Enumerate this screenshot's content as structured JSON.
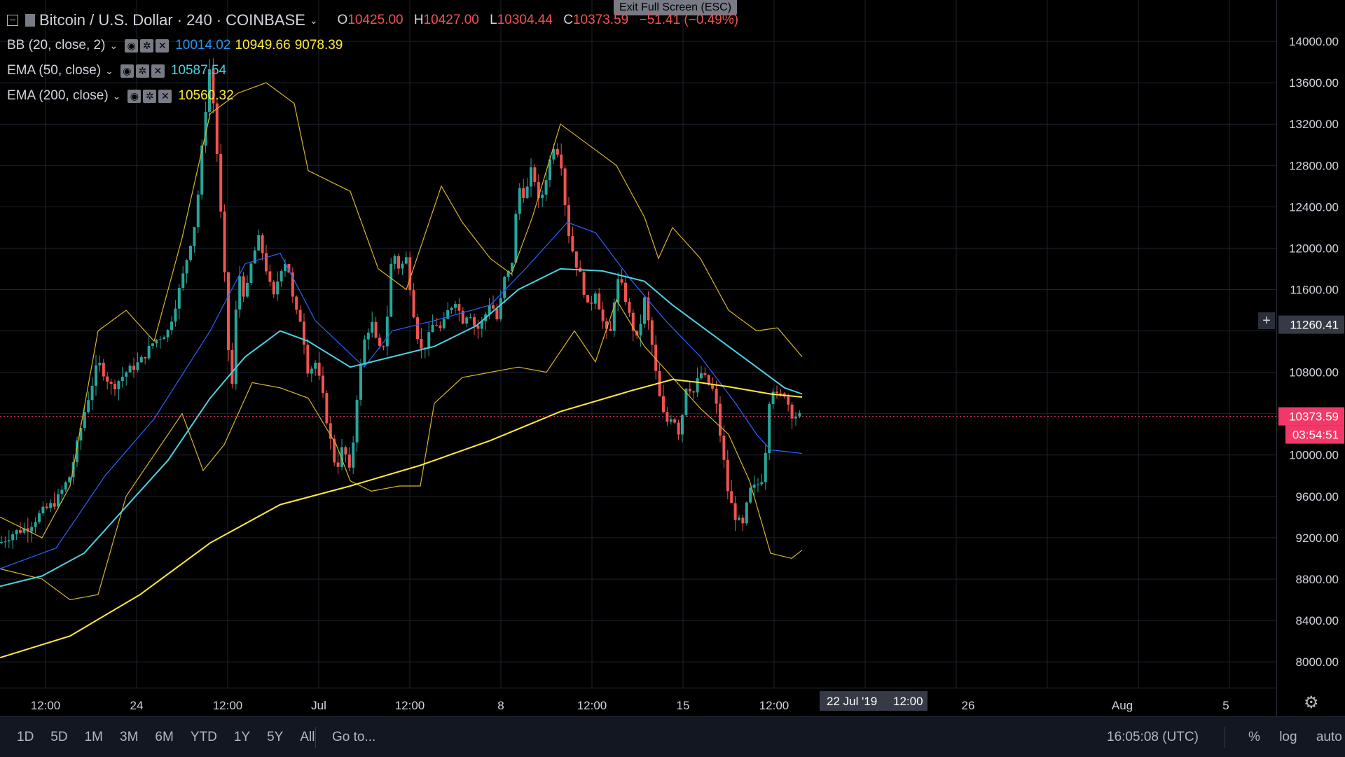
{
  "toolbar_hint": "Exit Full Screen (ESC)",
  "symbol": {
    "title": "Bitcoin / U.S. Dollar",
    "interval": "240",
    "exchange": "COINBASE",
    "ohlc": {
      "o_label": "O",
      "o": "10425.00",
      "h_label": "H",
      "h": "10427.00",
      "l_label": "L",
      "l": "10304.44",
      "c_label": "C",
      "c": "10373.59",
      "change": "−51.41 (−0.49%)"
    }
  },
  "indicators": [
    {
      "name": "BB (20, close, 2)",
      "values": [
        "10014.02",
        "10949.66",
        "9078.39"
      ],
      "colors": [
        "#2196f3",
        "#ffeb3b",
        "#ffeb3b"
      ]
    },
    {
      "name": "EMA (50, close)",
      "values": [
        "10587.54"
      ],
      "colors": [
        "#4dd0e1"
      ]
    },
    {
      "name": "EMA (200, close)",
      "values": [
        "10560.32"
      ],
      "colors": [
        "#ffeb3b"
      ]
    }
  ],
  "price_axis": {
    "ticks": [
      "14000.00",
      "13600.00",
      "13200.00",
      "12800.00",
      "12400.00",
      "12000.00",
      "11600.00",
      "10800.00",
      "10000.00",
      "9600.00",
      "9200.00",
      "8800.00",
      "8400.00",
      "8000.00"
    ],
    "crosshair_price": "11260.41",
    "last_price": "10373.59",
    "countdown": "03:54:51"
  },
  "time_axis": {
    "ticks": [
      "12:00",
      "24",
      "12:00",
      "Jul",
      "12:00",
      "8",
      "12:00",
      "15",
      "12:00",
      "26",
      "Aug",
      "5"
    ],
    "crosshair_date": "22 Jul '19",
    "crosshair_time": "12:00"
  },
  "bottom_bar": {
    "ranges": [
      "1D",
      "5D",
      "1M",
      "3M",
      "6M",
      "YTD",
      "1Y",
      "5Y",
      "All"
    ],
    "goto": "Go to...",
    "clock": "16:05:08 (UTC)",
    "percent": "%",
    "log": "log",
    "auto": "auto"
  },
  "icons": [
    "collapse-icon",
    "settings-icon",
    "eye-icon",
    "close-icon",
    "gear-icon",
    "crosshair-plus-icon"
  ],
  "colors": {
    "up": "#26a69a",
    "down": "#ef5350",
    "bb_band": "#d6b62a",
    "bb_basis": "#2962ff",
    "ema50": "#4dd0e1",
    "ema200": "#ffeb3b",
    "last_price_bg": "#f23869"
  },
  "chart_data": {
    "type": "candlestick",
    "ylim": [
      7750,
      14400
    ],
    "x_range": [
      0,
      1820
    ],
    "series": [
      {
        "name": "BB (20, close, 2)",
        "type": "line"
      },
      {
        "name": "EMA (50, close)",
        "type": "line"
      },
      {
        "name": "EMA (200, close)",
        "type": "line"
      }
    ],
    "ema200": [
      [
        0,
        8040
      ],
      [
        100,
        8250
      ],
      [
        200,
        8650
      ],
      [
        300,
        9150
      ],
      [
        400,
        9520
      ],
      [
        500,
        9700
      ],
      [
        600,
        9900
      ],
      [
        700,
        10140
      ],
      [
        800,
        10420
      ],
      [
        900,
        10620
      ],
      [
        960,
        10730
      ],
      [
        1000,
        10700
      ],
      [
        1040,
        10660
      ],
      [
        1100,
        10590
      ],
      [
        1145,
        10560
      ]
    ],
    "ema50": [
      [
        0,
        8730
      ],
      [
        60,
        8830
      ],
      [
        120,
        9050
      ],
      [
        180,
        9500
      ],
      [
        240,
        9950
      ],
      [
        300,
        10550
      ],
      [
        350,
        10950
      ],
      [
        400,
        11200
      ],
      [
        440,
        11100
      ],
      [
        500,
        10850
      ],
      [
        560,
        10950
      ],
      [
        620,
        11050
      ],
      [
        680,
        11250
      ],
      [
        740,
        11600
      ],
      [
        800,
        11800
      ],
      [
        860,
        11780
      ],
      [
        920,
        11680
      ],
      [
        960,
        11450
      ],
      [
        1000,
        11250
      ],
      [
        1040,
        11050
      ],
      [
        1080,
        10850
      ],
      [
        1120,
        10650
      ],
      [
        1145,
        10590
      ]
    ],
    "bb_basis": [
      [
        0,
        8900
      ],
      [
        80,
        9100
      ],
      [
        150,
        9800
      ],
      [
        220,
        10350
      ],
      [
        300,
        11200
      ],
      [
        350,
        11850
      ],
      [
        400,
        11950
      ],
      [
        450,
        11300
      ],
      [
        520,
        10850
      ],
      [
        560,
        11200
      ],
      [
        620,
        11300
      ],
      [
        700,
        11450
      ],
      [
        750,
        11800
      ],
      [
        810,
        12250
      ],
      [
        850,
        12150
      ],
      [
        900,
        11700
      ],
      [
        950,
        11300
      ],
      [
        1000,
        10950
      ],
      [
        1050,
        10500
      ],
      [
        1080,
        10200
      ],
      [
        1100,
        10050
      ],
      [
        1145,
        10015
      ]
    ],
    "bb_upper": [
      [
        0,
        9400
      ],
      [
        60,
        9200
      ],
      [
        100,
        9700
      ],
      [
        140,
        11200
      ],
      [
        180,
        11400
      ],
      [
        220,
        11100
      ],
      [
        260,
        12100
      ],
      [
        300,
        13300
      ],
      [
        340,
        13500
      ],
      [
        380,
        13600
      ],
      [
        420,
        13400
      ],
      [
        440,
        12750
      ],
      [
        470,
        12650
      ],
      [
        500,
        12550
      ],
      [
        540,
        11800
      ],
      [
        580,
        11600
      ],
      [
        600,
        12000
      ],
      [
        630,
        12600
      ],
      [
        660,
        12250
      ],
      [
        700,
        11900
      ],
      [
        730,
        11750
      ],
      [
        760,
        12300
      ],
      [
        800,
        13200
      ],
      [
        840,
        13000
      ],
      [
        880,
        12800
      ],
      [
        920,
        12300
      ],
      [
        940,
        11900
      ],
      [
        960,
        12200
      ],
      [
        1000,
        11900
      ],
      [
        1040,
        11400
      ],
      [
        1080,
        11200
      ],
      [
        1110,
        11230
      ],
      [
        1145,
        10950
      ]
    ],
    "bb_lower": [
      [
        0,
        8900
      ],
      [
        60,
        8800
      ],
      [
        100,
        8600
      ],
      [
        140,
        8650
      ],
      [
        180,
        9600
      ],
      [
        220,
        10000
      ],
      [
        260,
        10400
      ],
      [
        290,
        9850
      ],
      [
        320,
        10100
      ],
      [
        360,
        10700
      ],
      [
        400,
        10650
      ],
      [
        440,
        10550
      ],
      [
        480,
        10100
      ],
      [
        500,
        9750
      ],
      [
        530,
        9650
      ],
      [
        570,
        9700
      ],
      [
        600,
        9700
      ],
      [
        620,
        10500
      ],
      [
        660,
        10750
      ],
      [
        700,
        10800
      ],
      [
        740,
        10850
      ],
      [
        780,
        10800
      ],
      [
        820,
        11200
      ],
      [
        850,
        10900
      ],
      [
        880,
        11500
      ],
      [
        920,
        11050
      ],
      [
        960,
        10750
      ],
      [
        1000,
        10450
      ],
      [
        1040,
        10200
      ],
      [
        1070,
        9750
      ],
      [
        1100,
        9050
      ],
      [
        1130,
        9000
      ],
      [
        1145,
        9080
      ]
    ],
    "candles_path": [
      [
        0,
        9150
      ],
      [
        20,
        9250
      ],
      [
        40,
        9300
      ],
      [
        60,
        9450
      ],
      [
        80,
        9550
      ],
      [
        100,
        9800
      ],
      [
        120,
        10400
      ],
      [
        140,
        10900
      ],
      [
        160,
        10650
      ],
      [
        180,
        10800
      ],
      [
        200,
        10900
      ],
      [
        220,
        11100
      ],
      [
        240,
        11200
      ],
      [
        260,
        11700
      ],
      [
        280,
        12300
      ],
      [
        290,
        13100
      ],
      [
        300,
        13800
      ],
      [
        310,
        12900
      ],
      [
        320,
        11800
      ],
      [
        330,
        10500
      ],
      [
        340,
        11800
      ],
      [
        350,
        11500
      ],
      [
        360,
        11900
      ],
      [
        370,
        12100
      ],
      [
        380,
        11800
      ],
      [
        390,
        11500
      ],
      [
        400,
        11800
      ],
      [
        410,
        11900
      ],
      [
        420,
        11400
      ],
      [
        430,
        11300
      ],
      [
        440,
        10800
      ],
      [
        450,
        10900
      ],
      [
        460,
        10600
      ],
      [
        470,
        10200
      ],
      [
        480,
        9850
      ],
      [
        490,
        10100
      ],
      [
        500,
        9800
      ],
      [
        510,
        10600
      ],
      [
        520,
        11100
      ],
      [
        530,
        11300
      ],
      [
        540,
        11000
      ],
      [
        550,
        11100
      ],
      [
        560,
        12000
      ],
      [
        570,
        11800
      ],
      [
        580,
        11900
      ],
      [
        590,
        11400
      ],
      [
        600,
        11000
      ],
      [
        610,
        11100
      ],
      [
        620,
        11300
      ],
      [
        630,
        11200
      ],
      [
        640,
        11400
      ],
      [
        650,
        11500
      ],
      [
        660,
        11300
      ],
      [
        670,
        11400
      ],
      [
        680,
        11200
      ],
      [
        690,
        11300
      ],
      [
        700,
        11500
      ],
      [
        710,
        11300
      ],
      [
        720,
        11700
      ],
      [
        730,
        11800
      ],
      [
        740,
        12600
      ],
      [
        750,
        12500
      ],
      [
        760,
        12800
      ],
      [
        770,
        12400
      ],
      [
        780,
        12700
      ],
      [
        790,
        13000
      ],
      [
        800,
        12900
      ],
      [
        810,
        12200
      ],
      [
        820,
        11900
      ],
      [
        830,
        11700
      ],
      [
        840,
        11400
      ],
      [
        850,
        11600
      ],
      [
        860,
        11300
      ],
      [
        870,
        11100
      ],
      [
        880,
        11700
      ],
      [
        890,
        11600
      ],
      [
        900,
        11300
      ],
      [
        910,
        11100
      ],
      [
        920,
        11500
      ],
      [
        930,
        11100
      ],
      [
        940,
        10600
      ],
      [
        950,
        10300
      ],
      [
        960,
        10400
      ],
      [
        970,
        10200
      ],
      [
        980,
        10700
      ],
      [
        990,
        10600
      ],
      [
        1000,
        10800
      ],
      [
        1010,
        10700
      ],
      [
        1020,
        10600
      ],
      [
        1030,
        10100
      ],
      [
        1040,
        9600
      ],
      [
        1050,
        9400
      ],
      [
        1060,
        9300
      ],
      [
        1070,
        9650
      ],
      [
        1080,
        9700
      ],
      [
        1090,
        9800
      ],
      [
        1100,
        10700
      ],
      [
        1110,
        10550
      ],
      [
        1120,
        10600
      ],
      [
        1130,
        10400
      ],
      [
        1140,
        10373
      ]
    ]
  }
}
